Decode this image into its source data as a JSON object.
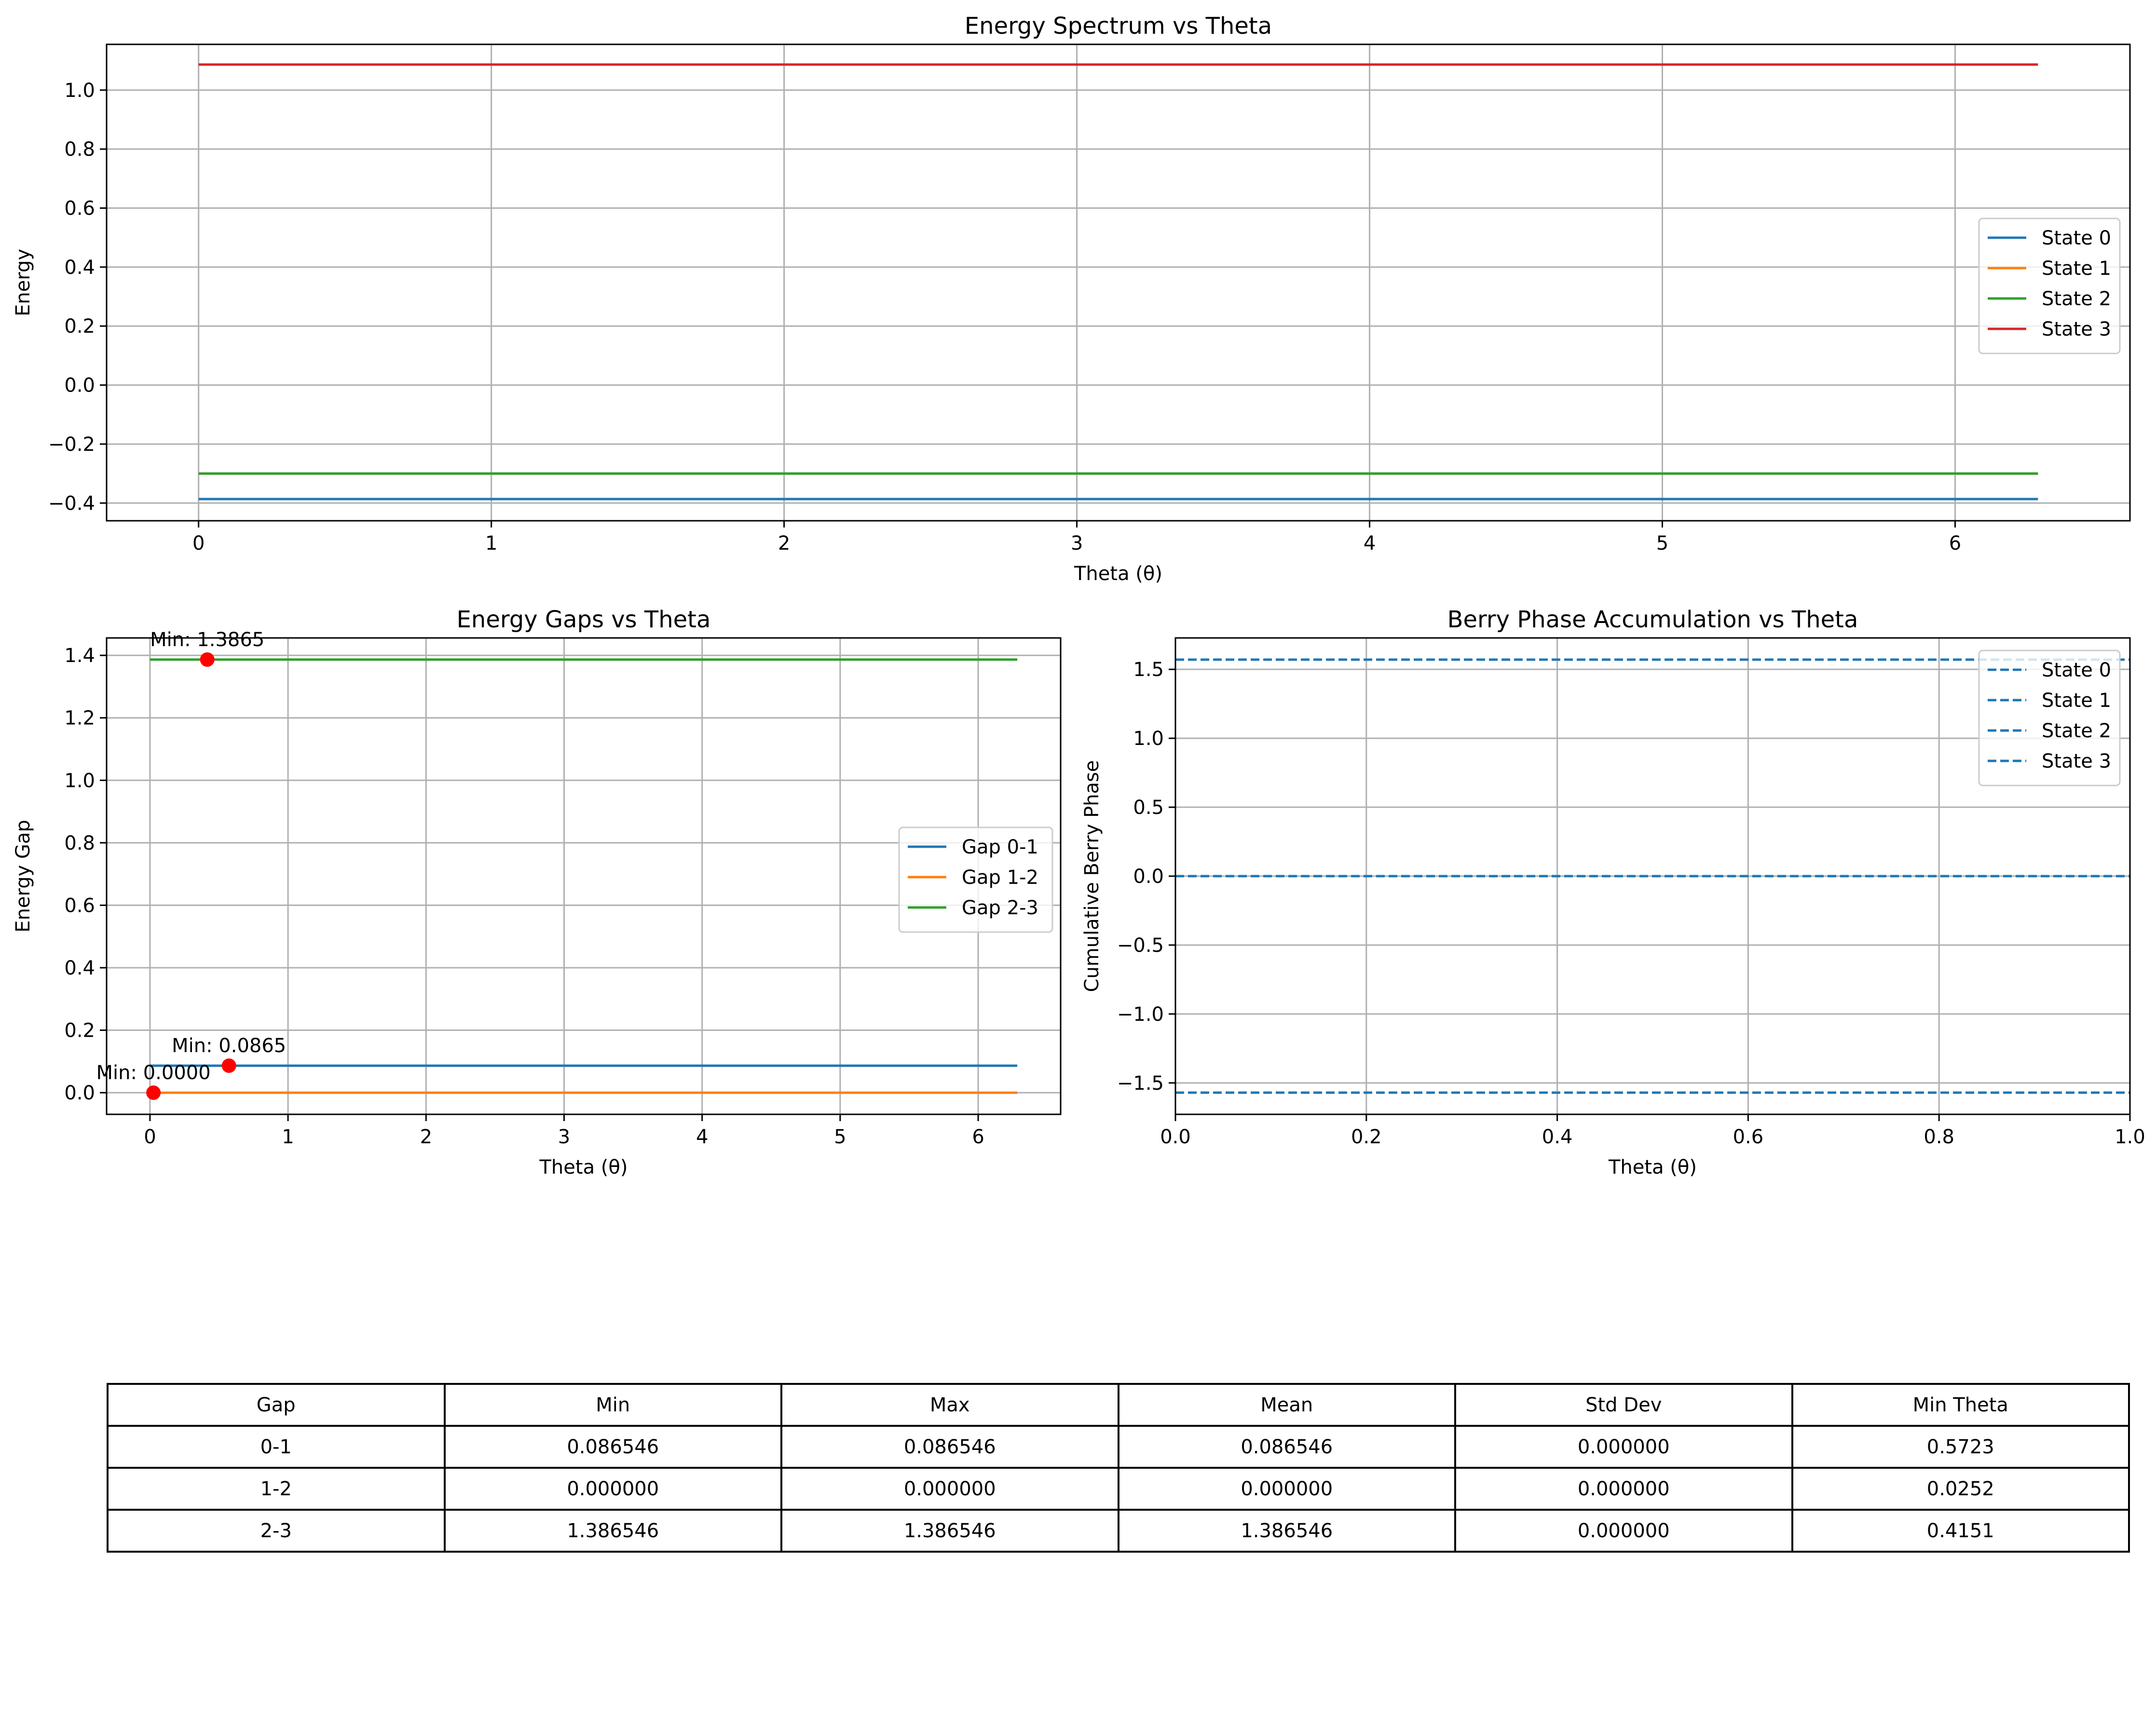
{
  "chart_data": [
    {
      "id": "spectrum",
      "type": "line",
      "title": "Energy Spectrum vs Theta",
      "xlabel": "Theta (θ)",
      "ylabel": "Energy",
      "xlim": [
        -0.3142,
        6.5973
      ],
      "ylim": [
        -0.46,
        1.155
      ],
      "xticks": [
        0,
        1,
        2,
        3,
        4,
        5,
        6
      ],
      "yticks": [
        -0.4,
        -0.2,
        0.0,
        0.2,
        0.4,
        0.6,
        0.8,
        1.0
      ],
      "ytick_labels": [
        "−0.4",
        "−0.2",
        "0.0",
        "0.2",
        "0.4",
        "0.6",
        "0.8",
        "1.0"
      ],
      "grid": true,
      "legend_position": "center-right",
      "series": [
        {
          "name": "State 0",
          "color": "#1f77b4",
          "dash": "solid",
          "x": [
            0,
            6.2832
          ],
          "y": [
            -0.3865,
            -0.3865
          ]
        },
        {
          "name": "State 1",
          "color": "#ff7f0e",
          "dash": "solid",
          "x": [
            0,
            6.2832
          ],
          "y": [
            -0.3,
            -0.3
          ]
        },
        {
          "name": "State 2",
          "color": "#2ca02c",
          "dash": "solid",
          "x": [
            0,
            6.2832
          ],
          "y": [
            -0.3,
            -0.3
          ]
        },
        {
          "name": "State 3",
          "color": "#d62728",
          "dash": "solid",
          "x": [
            0,
            6.2832
          ],
          "y": [
            1.0865,
            1.0865
          ]
        }
      ]
    },
    {
      "id": "gaps",
      "type": "line",
      "title": "Energy Gaps vs Theta",
      "xlabel": "Theta (θ)",
      "ylabel": "Energy Gap",
      "xlim": [
        -0.3142,
        6.5973
      ],
      "ylim": [
        -0.0693,
        1.4558
      ],
      "xticks": [
        0,
        1,
        2,
        3,
        4,
        5,
        6
      ],
      "yticks": [
        0.0,
        0.2,
        0.4,
        0.6,
        0.8,
        1.0,
        1.2,
        1.4
      ],
      "ytick_labels": [
        "0.0",
        "0.2",
        "0.4",
        "0.6",
        "0.8",
        "1.0",
        "1.2",
        "1.4"
      ],
      "grid": true,
      "legend_position": "center-right",
      "series": [
        {
          "name": "Gap 0-1",
          "color": "#1f77b4",
          "dash": "solid",
          "x": [
            0,
            6.2832
          ],
          "y": [
            0.0865,
            0.0865
          ]
        },
        {
          "name": "Gap 1-2",
          "color": "#ff7f0e",
          "dash": "solid",
          "x": [
            0,
            6.2832
          ],
          "y": [
            0.0,
            0.0
          ]
        },
        {
          "name": "Gap 2-3",
          "color": "#2ca02c",
          "dash": "solid",
          "x": [
            0,
            6.2832
          ],
          "y": [
            1.3865,
            1.3865
          ]
        }
      ],
      "markers": [
        {
          "x": 0.5723,
          "y": 0.0865,
          "label": "Min: 0.0865",
          "color": "#ff0000"
        },
        {
          "x": 0.0252,
          "y": 0.0,
          "label": "Min: 0.0000",
          "color": "#ff0000"
        },
        {
          "x": 0.4151,
          "y": 1.3865,
          "label": "Min: 1.3865",
          "color": "#ff0000"
        }
      ]
    },
    {
      "id": "berry",
      "type": "line",
      "title": "Berry Phase Accumulation vs Theta",
      "xlabel": "Theta (θ)",
      "ylabel": "Cumulative Berry Phase",
      "xlim": [
        0.0,
        1.0
      ],
      "ylim": [
        -1.728,
        1.728
      ],
      "xticks": [
        0.0,
        0.2,
        0.4,
        0.6,
        0.8,
        1.0
      ],
      "xtick_labels": [
        "0.0",
        "0.2",
        "0.4",
        "0.6",
        "0.8",
        "1.0"
      ],
      "yticks": [
        -1.5,
        -1.0,
        -0.5,
        0.0,
        0.5,
        1.0,
        1.5
      ],
      "ytick_labels": [
        "−1.5",
        "−1.0",
        "−0.5",
        "0.0",
        "0.5",
        "1.0",
        "1.5"
      ],
      "grid": true,
      "legend_position": "top-right",
      "series": [
        {
          "name": "State 0",
          "color": "#1f77b4",
          "dash": "dashed",
          "x": [
            0.0,
            1.0
          ],
          "y": [
            -1.5708,
            -1.5708
          ]
        },
        {
          "name": "State 1",
          "color": "#1f77b4",
          "dash": "dashed",
          "x": [
            0.0,
            1.0
          ],
          "y": [
            0.0,
            0.0
          ]
        },
        {
          "name": "State 2",
          "color": "#1f77b4",
          "dash": "dashed",
          "x": [
            0.0,
            1.0
          ],
          "y": [
            0.0,
            0.0
          ]
        },
        {
          "name": "State 3",
          "color": "#1f77b4",
          "dash": "dashed",
          "x": [
            0.0,
            1.0
          ],
          "y": [
            1.5708,
            1.5708
          ]
        }
      ]
    }
  ],
  "table": {
    "headers": [
      "Gap",
      "Min",
      "Max",
      "Mean",
      "Std Dev",
      "Min Theta"
    ],
    "rows": [
      [
        "0-1",
        "0.086546",
        "0.086546",
        "0.086546",
        "0.000000",
        "0.5723"
      ],
      [
        "1-2",
        "0.000000",
        "0.000000",
        "0.000000",
        "0.000000",
        "0.0252"
      ],
      [
        "2-3",
        "1.386546",
        "1.386546",
        "1.386546",
        "0.000000",
        "0.4151"
      ]
    ]
  }
}
